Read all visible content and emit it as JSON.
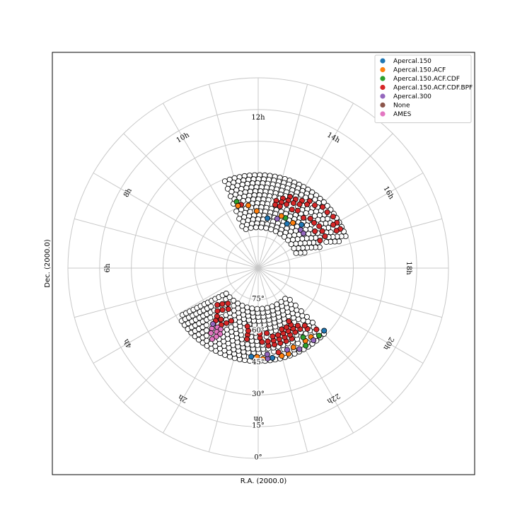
{
  "chart_data": {
    "type": "scatter",
    "projection": "polar",
    "xlabel": "R.A. (2000.0)",
    "ylabel": "Dec. (2000.0)",
    "ra_tick_labels": [
      "0h",
      "2h",
      "4h",
      "6h",
      "8h",
      "10h",
      "12h",
      "14h",
      "16h",
      "18h",
      "20h",
      "22h"
    ],
    "dec_tick_labels": [
      "0°",
      "15°",
      "30°",
      "45°",
      "60°",
      "75°"
    ],
    "dec_range": [
      0,
      90
    ],
    "grid": true,
    "legend_position": "top-right",
    "series": [
      {
        "name": "Apercal.150",
        "color": "#1f77b4"
      },
      {
        "name": "Apercal.150.ACF",
        "color": "#ff7f0e"
      },
      {
        "name": "Apercal.150.ACF.CDF",
        "color": "#2ca02c"
      },
      {
        "name": "Apercal.150.ACF.CDF.BPF",
        "color": "#d62728"
      },
      {
        "name": "Apercal.300",
        "color": "#9467bd"
      },
      {
        "name": "None",
        "color": "#8c564b"
      },
      {
        "name": "AMES",
        "color": "#e377c2"
      }
    ],
    "regions": [
      {
        "ra_start": 10.6,
        "ra_end": 16.8,
        "dec_min": 46,
        "dec_max": 72
      },
      {
        "ra_start": 21.0,
        "ra_end": 3.9,
        "dec_min": 46,
        "dec_max": 72
      }
    ],
    "grid_step": {
      "ra_hours": 0.25,
      "dec_deg": 1.9
    },
    "colored_points": [
      {
        "ra": 13.0,
        "dec": 57.0,
        "s": "Apercal.150.ACF.CDF.BPF"
      },
      {
        "ra": 13.0,
        "dec": 59.0,
        "s": "Apercal.150.ACF.CDF.BPF"
      },
      {
        "ra": 13.3,
        "dec": 55.0,
        "s": "Apercal.150.ACF.CDF.BPF"
      },
      {
        "ra": 13.3,
        "dec": 57.0,
        "s": "Apercal.150.ACF.CDF.BPF"
      },
      {
        "ra": 13.3,
        "dec": 59.0,
        "s": "Apercal.150.ACF.CDF.BPF"
      },
      {
        "ra": 13.6,
        "dec": 53.0,
        "s": "Apercal.150.ACF.CDF.BPF"
      },
      {
        "ra": 13.6,
        "dec": 55.0,
        "s": "Apercal.150.ACF.CDF.BPF"
      },
      {
        "ra": 13.6,
        "dec": 57.0,
        "s": "Apercal.150.ACF.CDF.BPF"
      },
      {
        "ra": 13.9,
        "dec": 53.0,
        "s": "Apercal.150.ACF.CDF.BPF"
      },
      {
        "ra": 13.9,
        "dec": 55.0,
        "s": "Apercal.150.ACF.CDF.BPF"
      },
      {
        "ra": 14.2,
        "dec": 52.0,
        "s": "Apercal.150.ACF.CDF.BPF"
      },
      {
        "ra": 14.2,
        "dec": 54.0,
        "s": "Apercal.150.ACF.CDF.BPF"
      },
      {
        "ra": 14.5,
        "dec": 50.0,
        "s": "Apercal.150.ACF.CDF.BPF"
      },
      {
        "ra": 14.5,
        "dec": 52.0,
        "s": "Apercal.150.ACF.CDF.BPF"
      },
      {
        "ra": 14.8,
        "dec": 50.0,
        "s": "Apercal.150.ACF.CDF.BPF"
      },
      {
        "ra": 15.1,
        "dec": 48.0,
        "s": "Apercal.150.ACF.CDF.BPF"
      },
      {
        "ra": 15.4,
        "dec": 48.0,
        "s": "Apercal.150.ACF.CDF.BPF"
      },
      {
        "ra": 15.7,
        "dec": 47.0,
        "s": "Apercal.150.ACF.CDF.BPF"
      },
      {
        "ra": 16.0,
        "dec": 47.0,
        "s": "Apercal.150.ACF.CDF.BPF"
      },
      {
        "ra": 16.3,
        "dec": 47.0,
        "s": "Apercal.150.ACF.CDF.BPF"
      },
      {
        "ra": 16.3,
        "dec": 49.0,
        "s": "Apercal.150.ACF.CDF.BPF"
      },
      {
        "ra": 16.0,
        "dec": 49.0,
        "s": "Apercal.150.ACF.CDF.BPF"
      },
      {
        "ra": 14.0,
        "dec": 58.0,
        "s": "Apercal.150.ACF.CDF.BPF"
      },
      {
        "ra": 14.3,
        "dec": 57.0,
        "s": "Apercal.150.ACF.CDF.BPF"
      },
      {
        "ra": 15.0,
        "dec": 61.0,
        "s": "Apercal.150"
      },
      {
        "ra": 15.2,
        "dec": 63.0,
        "s": "Apercal.300"
      },
      {
        "ra": 15.5,
        "dec": 63.0,
        "s": "Apercal.300"
      },
      {
        "ra": 14.5,
        "dec": 63.0,
        "s": "Apercal.150.ACF"
      },
      {
        "ra": 13.9,
        "dec": 63.0,
        "s": "Apercal.150.ACF.CDF"
      },
      {
        "ra": 14.2,
        "dec": 65.0,
        "s": "Apercal.150"
      },
      {
        "ra": 13.6,
        "dec": 63.0,
        "s": "Apercal.150.ACF"
      },
      {
        "ra": 13.4,
        "dec": 65.0,
        "s": "Apercal.300"
      },
      {
        "ra": 12.7,
        "dec": 66.0,
        "s": "Apercal.150"
      },
      {
        "ra": 11.9,
        "dec": 63.0,
        "s": "Apercal.150.ACF"
      },
      {
        "ra": 11.4,
        "dec": 60.0,
        "s": "Apercal.150.ACF"
      },
      {
        "ra": 11.0,
        "dec": 59.0,
        "s": "Apercal.150.ACF.CDF.BPF"
      },
      {
        "ra": 10.8,
        "dec": 57.0,
        "s": "Apercal.150.ACF.CDF"
      },
      {
        "ra": 10.8,
        "dec": 59.0,
        "s": "Apercal.150.ACF"
      },
      {
        "ra": 14.8,
        "dec": 58.0,
        "s": "Apercal.150.ACF.CDF.BPF"
      },
      {
        "ra": 15.1,
        "dec": 56.0,
        "s": "Apercal.150.ACF.CDF.BPF"
      },
      {
        "ra": 15.4,
        "dec": 56.0,
        "s": "Apercal.150.ACF.CDF.BPF"
      },
      {
        "ra": 15.7,
        "dec": 55.0,
        "s": "Apercal.150.ACF.CDF.BPF"
      },
      {
        "ra": 16.0,
        "dec": 55.0,
        "s": "Apercal.150.ACF.CDF.BPF"
      },
      {
        "ra": 16.3,
        "dec": 55.0,
        "s": "Apercal.150.ACF.CDF.BPF"
      },
      {
        "ra": 15.8,
        "dec": 58.0,
        "s": "Apercal.150.ACF.CDF.BPF"
      },
      {
        "ra": 16.4,
        "dec": 58.0,
        "s": "Apercal.150.ACF.CDF.BPF"
      },
      {
        "ra": 22.0,
        "dec": 55.0,
        "s": "Apercal.150.ACF.CDF.BPF"
      },
      {
        "ra": 22.0,
        "dec": 57.0,
        "s": "Apercal.150.ACF.CDF.BPF"
      },
      {
        "ra": 22.0,
        "dec": 59.0,
        "s": "Apercal.150.ACF.CDF.BPF"
      },
      {
        "ra": 22.0,
        "dec": 61.0,
        "s": "Apercal.150.ACF.CDF.BPF"
      },
      {
        "ra": 22.3,
        "dec": 53.0,
        "s": "Apercal.150.ACF.CDF.BPF"
      },
      {
        "ra": 22.3,
        "dec": 55.0,
        "s": "Apercal.150.ACF.CDF.BPF"
      },
      {
        "ra": 22.3,
        "dec": 57.0,
        "s": "Apercal.150.ACF.CDF.BPF"
      },
      {
        "ra": 22.3,
        "dec": 59.0,
        "s": "Apercal.150.ACF.CDF.BPF"
      },
      {
        "ra": 22.6,
        "dec": 53.0,
        "s": "Apercal.150.ACF.CDF.BPF"
      },
      {
        "ra": 22.6,
        "dec": 55.0,
        "s": "Apercal.150.ACF.CDF.BPF"
      },
      {
        "ra": 22.6,
        "dec": 57.0,
        "s": "Apercal.150.ACF.CDF.BPF"
      },
      {
        "ra": 22.6,
        "dec": 59.0,
        "s": "Apercal.150.ACF.CDF.BPF"
      },
      {
        "ra": 22.9,
        "dec": 53.0,
        "s": "Apercal.150.ACF.CDF.BPF"
      },
      {
        "ra": 22.9,
        "dec": 55.0,
        "s": "Apercal.150.ACF.CDF.BPF"
      },
      {
        "ra": 22.9,
        "dec": 57.0,
        "s": "Apercal.150.ACF.CDF.BPF"
      },
      {
        "ra": 23.2,
        "dec": 53.0,
        "s": "Apercal.150.ACF.CDF.BPF"
      },
      {
        "ra": 23.2,
        "dec": 55.0,
        "s": "Apercal.150.ACF.CDF.BPF"
      },
      {
        "ra": 23.2,
        "dec": 57.0,
        "s": "Apercal.150.ACF.CDF.BPF"
      },
      {
        "ra": 23.5,
        "dec": 53.0,
        "s": "Apercal.150.ACF.CDF.BPF"
      },
      {
        "ra": 23.5,
        "dec": 55.0,
        "s": "Apercal.150.ACF.CDF.BPF"
      },
      {
        "ra": 23.5,
        "dec": 59.0,
        "s": "Apercal.150.ACF.CDF.BPF"
      },
      {
        "ra": 21.7,
        "dec": 55.0,
        "s": "Apercal.150.ACF.CDF.BPF"
      },
      {
        "ra": 21.7,
        "dec": 57.0,
        "s": "Apercal.150.ACF.CDF.BPF"
      },
      {
        "ra": 21.4,
        "dec": 53.0,
        "s": "Apercal.150.ACF.CDF.BPF"
      },
      {
        "ra": 21.4,
        "dec": 55.0,
        "s": "Apercal.150.ACF.CDF.BPF"
      },
      {
        "ra": 21.1,
        "dec": 50.0,
        "s": "Apercal.150.ACF.CDF.BPF"
      },
      {
        "ra": 21.5,
        "dec": 49.0,
        "s": "Apercal.150.ACF"
      },
      {
        "ra": 21.8,
        "dec": 49.0,
        "s": "Apercal.150.ACF"
      },
      {
        "ra": 21.8,
        "dec": 51.0,
        "s": "Apercal.150.ACF.CDF"
      },
      {
        "ra": 21.9,
        "dec": 47.0,
        "s": "Apercal.150.ACF.CDF"
      },
      {
        "ra": 21.5,
        "dec": 47.0,
        "s": "Apercal.300"
      },
      {
        "ra": 22.2,
        "dec": 47.0,
        "s": "Apercal.300"
      },
      {
        "ra": 21.2,
        "dec": 47.0,
        "s": "Apercal.150.ACF.CDF"
      },
      {
        "ra": 20.9,
        "dec": 47.0,
        "s": "Apercal.150"
      },
      {
        "ra": 22.4,
        "dec": 49.0,
        "s": "Apercal.150.ACF"
      },
      {
        "ra": 22.7,
        "dec": 47.0,
        "s": "Apercal.150.ACF"
      },
      {
        "ra": 22.7,
        "dec": 49.0,
        "s": "Apercal.300"
      },
      {
        "ra": 23.0,
        "dec": 47.0,
        "s": "Apercal.150.ACF"
      },
      {
        "ra": 23.1,
        "dec": 49.0,
        "s": "Apercal.150.ACF.CDF.BPF"
      },
      {
        "ra": 23.4,
        "dec": 47.0,
        "s": "Apercal.150"
      },
      {
        "ra": 23.6,
        "dec": 47.0,
        "s": "Apercal.300"
      },
      {
        "ra": 23.6,
        "dec": 49.0,
        "s": "Apercal.300"
      },
      {
        "ra": 23.8,
        "dec": 47.0,
        "s": "Apercal.150.ACF"
      },
      {
        "ra": 0.05,
        "dec": 48.0,
        "s": "Apercal.150.ACF"
      },
      {
        "ra": 0.3,
        "dec": 48.0,
        "s": "Apercal.150"
      },
      {
        "ra": 23.9,
        "dec": 57.0,
        "s": "Apercal.150.ACF.CDF.BPF"
      },
      {
        "ra": 23.9,
        "dec": 59.0,
        "s": "Apercal.150.ACF.CDF.BPF"
      },
      {
        "ra": 23.8,
        "dec": 55.0,
        "s": "Apercal.150.ACF.CDF.BPF"
      },
      {
        "ra": 2.7,
        "dec": 64.0,
        "s": "Apercal.150.ACF.CDF.BPF"
      },
      {
        "ra": 2.9,
        "dec": 62.0,
        "s": "Apercal.150.ACF.CDF.BPF"
      },
      {
        "ra": 2.7,
        "dec": 60.0,
        "s": "Apercal.150.ACF.CDF.BPF"
      },
      {
        "ra": 2.4,
        "dec": 60.0,
        "s": "Apercal.150.ACF.CDF.BPF"
      },
      {
        "ra": 2.2,
        "dec": 58.0,
        "s": "Apercal.150.ACF.CDF.BPF"
      },
      {
        "ra": 2.0,
        "dec": 60.0,
        "s": "Apercal.150.ACF.CDF.BPF"
      },
      {
        "ra": 2.4,
        "dec": 66.0,
        "s": "Apercal.150.ACF.CDF.BPF"
      },
      {
        "ra": 2.7,
        "dec": 68.0,
        "s": "Apercal.150.ACF.CDF.BPF"
      },
      {
        "ra": 3.0,
        "dec": 66.0,
        "s": "Apercal.150.ACF.CDF.BPF"
      },
      {
        "ra": 3.2,
        "dec": 64.0,
        "s": "Apercal.150.ACF.CDF.BPF"
      },
      {
        "ra": 2.6,
        "dec": 58.0,
        "s": "Apercal.150.ACF.CDF.BPF"
      },
      {
        "ra": 1.8,
        "dec": 62.0,
        "s": "Apercal.150.ACF.CDF.BPF"
      },
      {
        "ra": 2.3,
        "dec": 56.0,
        "s": "AMES"
      },
      {
        "ra": 2.1,
        "dec": 56.0,
        "s": "AMES"
      },
      {
        "ra": 2.5,
        "dec": 54.0,
        "s": "AMES"
      },
      {
        "ra": 2.2,
        "dec": 54.0,
        "s": "AMES"
      },
      {
        "ra": 2.0,
        "dec": 54.0,
        "s": "AMES"
      },
      {
        "ra": 2.4,
        "dec": 52.0,
        "s": "AMES"
      },
      {
        "ra": 2.1,
        "dec": 52.0,
        "s": "AMES"
      },
      {
        "ra": 2.6,
        "dec": 56.0,
        "s": "Apercal.300"
      },
      {
        "ra": 2.2,
        "dec": 50.0,
        "s": "AMES"
      },
      {
        "ra": 0.6,
        "dec": 58.0,
        "s": "Apercal.150.ACF.CDF.BPF"
      },
      {
        "ra": 0.6,
        "dec": 60.0,
        "s": "Apercal.150.ACF.CDF.BPF"
      },
      {
        "ra": 0.7,
        "dec": 62.0,
        "s": "Apercal.150.ACF.CDF.BPF"
      },
      {
        "ra": 0.6,
        "dec": 56.0,
        "s": "Apercal.150.ACF.CDF.BPF"
      }
    ]
  }
}
